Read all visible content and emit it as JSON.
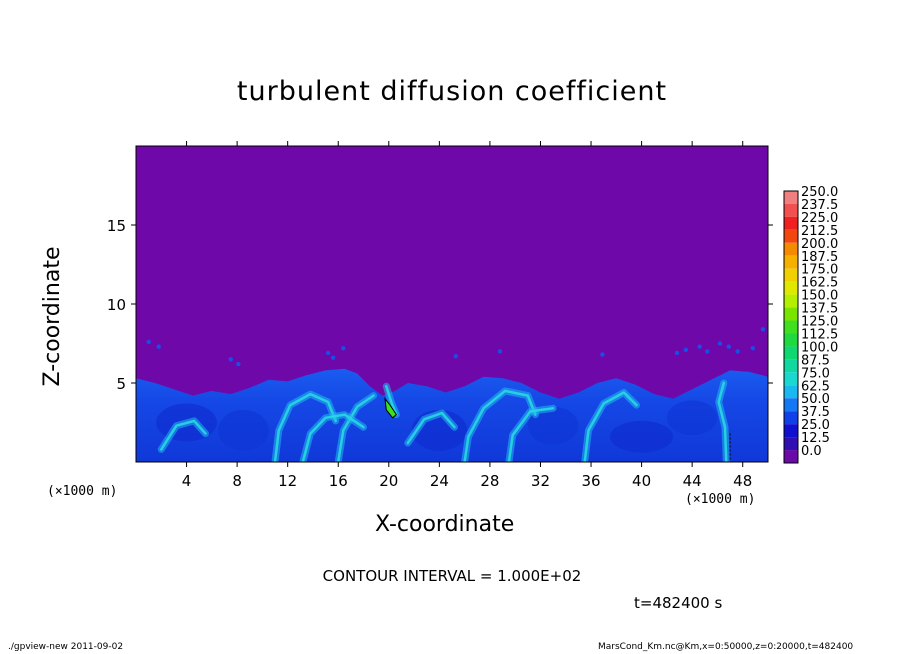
{
  "chart_data": {
    "type": "heatmap",
    "title": "turbulent diffusion coefficient",
    "xlabel": "X-coordinate",
    "ylabel": "Z-coordinate",
    "x_unit_label": "(×1000 m)",
    "xlim": [
      0,
      50
    ],
    "ylim": [
      0,
      20
    ],
    "x_ticks": [
      4,
      8,
      12,
      16,
      20,
      24,
      28,
      32,
      36,
      40,
      44,
      48
    ],
    "y_ticks": [
      5,
      10,
      15
    ],
    "colorbar": {
      "levels": [
        "250.0",
        "237.5",
        "225.0",
        "212.5",
        "200.0",
        "187.5",
        "175.0",
        "162.5",
        "150.0",
        "137.5",
        "125.0",
        "112.5",
        "100.0",
        "87.5",
        "75.0",
        "62.5",
        "50.0",
        "37.5",
        "25.0",
        "12.5",
        "0.0"
      ],
      "colors": [
        "#f08080",
        "#f25050",
        "#ee2020",
        "#f24810",
        "#f48a00",
        "#f8b000",
        "#f0d000",
        "#e0e800",
        "#b4ee00",
        "#78e400",
        "#40e020",
        "#20d840",
        "#10d870",
        "#10d8a0",
        "#18d8d0",
        "#1ab8f0",
        "#1478f4",
        "#1040e8",
        "#1010d0",
        "#3010b0",
        "#6a0aa8"
      ]
    },
    "background_color": "#6f08a8",
    "contour_interval": "CONTOUR INTERVAL = 1.000E+02",
    "time_label": "t=482400 s"
  },
  "footer": {
    "left": "./gpview-new  2011-09-02",
    "right": "MarsCond_Km.nc@Km,x=0:50000,z=0:20000,t=482400"
  }
}
